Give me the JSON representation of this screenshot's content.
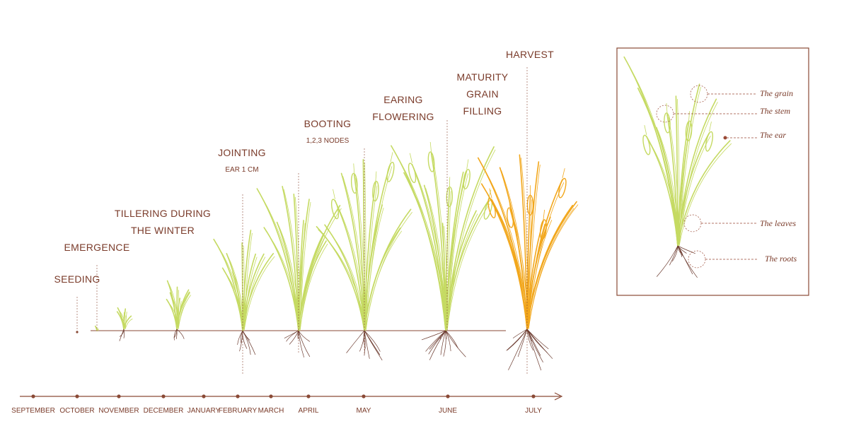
{
  "stages": [
    {
      "lines": [
        "SEEDING"
      ]
    },
    {
      "lines": [
        "EMERGENCE"
      ]
    },
    {
      "lines": [
        "TILLERING DURING",
        "THE WINTER"
      ]
    },
    {
      "lines": [
        "JOINTING"
      ],
      "sub": "EAR 1 CM"
    },
    {
      "lines": [
        "BOOTING"
      ],
      "sub": "1,2,3 NODES"
    },
    {
      "lines": [
        "EARING",
        "FLOWERING"
      ]
    },
    {
      "lines": [
        "MATURITY",
        "GRAIN",
        "FILLING"
      ]
    },
    {
      "lines": [
        "HARVEST"
      ]
    }
  ],
  "months": [
    "SEPTEMBER",
    "OCTOBER",
    "NOVEMBER",
    "DECEMBER",
    "JANUARY",
    "FEBRUARY",
    "MARCH",
    "APRIL",
    "MAY",
    "JUNE",
    "JULY"
  ],
  "parts": [
    "The grain",
    "The stem",
    "The ear",
    "The leaves",
    "The roots"
  ]
}
